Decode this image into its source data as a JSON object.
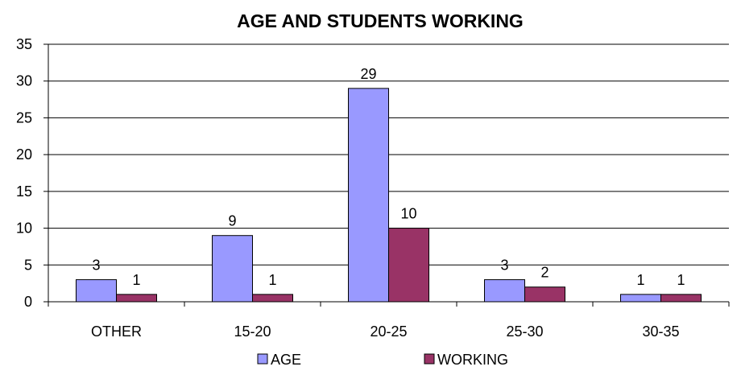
{
  "chart_data": {
    "type": "bar",
    "title": "AGE AND STUDENTS WORKING",
    "categories": [
      "OTHER",
      "15-20",
      "20-25",
      "25-30",
      "30-35"
    ],
    "series": [
      {
        "name": "AGE",
        "values": [
          3,
          9,
          29,
          3,
          1
        ],
        "color": "#9999ff"
      },
      {
        "name": "WORKING",
        "values": [
          1,
          1,
          10,
          2,
          1
        ],
        "color": "#993366"
      }
    ],
    "ylim": [
      0,
      35
    ],
    "yticks": [
      0,
      5,
      10,
      15,
      20,
      25,
      30,
      35
    ],
    "grid": true,
    "data_labels": true,
    "legend_position": "bottom"
  }
}
